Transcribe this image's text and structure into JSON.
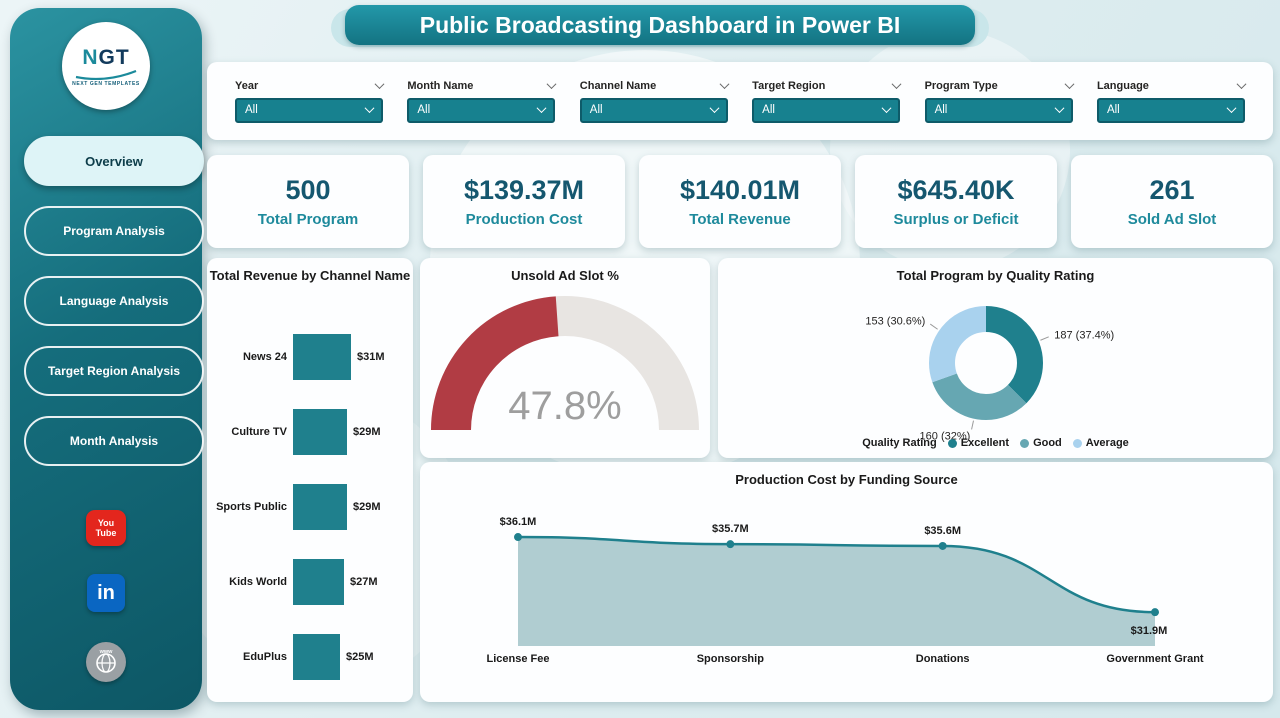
{
  "title": "Public Broadcasting Dashboard in Power BI",
  "logo": {
    "text": "NGT",
    "subtext": "NEXT GEN TEMPLATES"
  },
  "icons": {
    "youtube_line1": "You",
    "youtube_line2": "Tube",
    "linkedin": "in",
    "website": "www",
    "chevron": "chevron-down"
  },
  "sidebar": {
    "items": [
      {
        "label": "Overview",
        "active": true
      },
      {
        "label": "Program Analysis",
        "active": false
      },
      {
        "label": "Language Analysis",
        "active": false
      },
      {
        "label": "Target Region Analysis",
        "active": false
      },
      {
        "label": "Month Analysis",
        "active": false
      }
    ]
  },
  "filters": [
    {
      "label": "Year",
      "value": "All"
    },
    {
      "label": "Month Name",
      "value": "All"
    },
    {
      "label": "Channel Name",
      "value": "All"
    },
    {
      "label": "Target Region",
      "value": "All"
    },
    {
      "label": "Program Type",
      "value": "All"
    },
    {
      "label": "Language",
      "value": "All"
    }
  ],
  "kpis": [
    {
      "value": "500",
      "label": "Total Program"
    },
    {
      "value": "$139.37M",
      "label": "Production Cost"
    },
    {
      "value": "$140.01M",
      "label": "Total Revenue"
    },
    {
      "value": "$645.40K",
      "label": "Surplus or Deficit"
    },
    {
      "value": "261",
      "label": "Sold Ad Slot"
    }
  ],
  "colors": {
    "accent_teal": "#1f808d",
    "dark_teal": "#0e5a68",
    "kpi_number": "#15576f",
    "gauge_red": "#b13c44",
    "gauge_track": "#e8e5e2",
    "area_fill": "#b0cdd1"
  },
  "chart_data": [
    {
      "type": "bar",
      "title": "Total Revenue by Channel Name",
      "orientation": "horizontal",
      "categories": [
        "News 24",
        "Culture TV",
        "Sports Public",
        "Kids World",
        "EduPlus"
      ],
      "values": [
        31,
        29,
        29,
        27,
        25
      ],
      "labels": [
        "$31M",
        "$29M",
        "$29M",
        "$27M",
        "$25M"
      ],
      "xlim": [
        0,
        31
      ],
      "bar_color": "#1f808d"
    },
    {
      "type": "gauge",
      "title": "Unsold Ad Slot %",
      "value": 47.8,
      "max": 100,
      "label": "47.8%",
      "color": "#b13c44",
      "track_color": "#e8e5e2"
    },
    {
      "type": "pie",
      "title": "Total Program by Quality Rating",
      "legend_title": "Quality Rating",
      "legend_position": "bottom",
      "slices": [
        {
          "name": "Excellent",
          "value": 187,
          "pct": 37.4,
          "label": "187 (37.4%)",
          "color": "#1f808d"
        },
        {
          "name": "Good",
          "value": 160,
          "pct": 32.0,
          "label": "160 (32%)",
          "color": "#66a7b2"
        },
        {
          "name": "Average",
          "value": 153,
          "pct": 30.6,
          "label": "153 (30.6%)",
          "color": "#a9d2ee"
        }
      ]
    },
    {
      "type": "area",
      "title": "Production Cost by Funding Source",
      "categories": [
        "License Fee",
        "Sponsorship",
        "Donations",
        "Government Grant"
      ],
      "values": [
        36.1,
        35.7,
        35.6,
        31.9
      ],
      "labels": [
        "$36.1M",
        "$35.7M",
        "$35.6M",
        "$31.9M"
      ],
      "line_color": "#1f808d",
      "fill_color": "#b0cdd1"
    }
  ]
}
